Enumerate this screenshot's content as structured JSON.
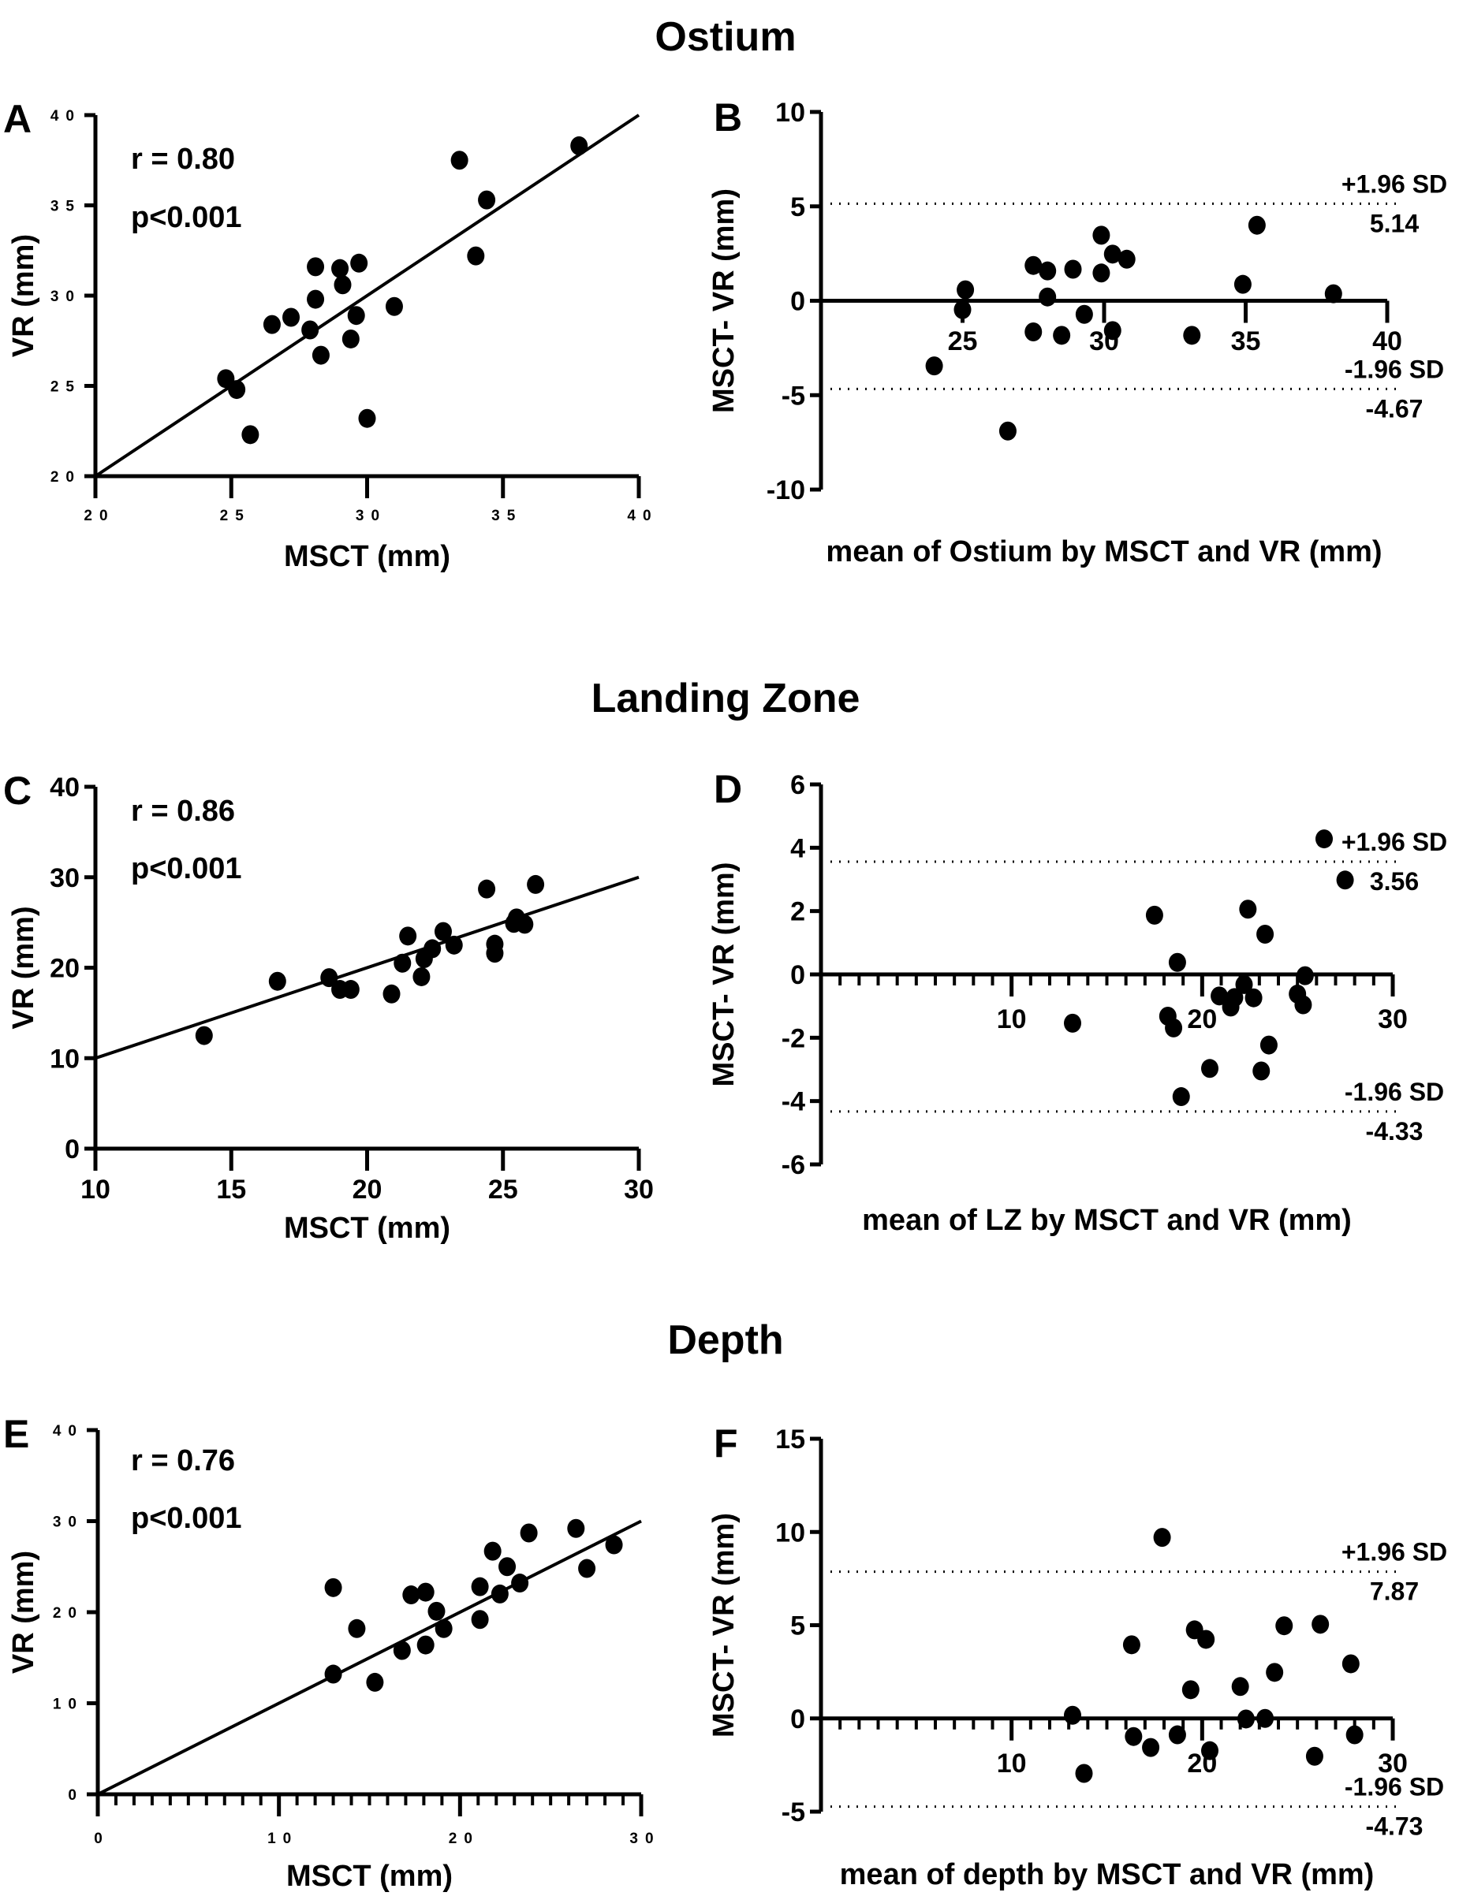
{
  "sections": {
    "ostium": "Ostium",
    "landing_zone": "Landing Zone",
    "depth": "Depth"
  },
  "chart_data": [
    {
      "id": "A",
      "letter": "A",
      "type": "scatter",
      "xlabel": "MSCT (mm)",
      "ylabel": "VR (mm)",
      "xlim": [
        20,
        40
      ],
      "ylim": [
        20,
        40
      ],
      "xticks": [
        20,
        25,
        30,
        35,
        40
      ],
      "yticks": [
        20,
        25,
        30,
        35,
        40
      ],
      "tick_style": "small",
      "stats": {
        "r": "r = 0.80",
        "p": "p<0.001"
      },
      "regression_line": [
        [
          20,
          20
        ],
        [
          40,
          40
        ]
      ],
      "points": [
        [
          24.8,
          25.4
        ],
        [
          25.2,
          24.8
        ],
        [
          25.7,
          22.3
        ],
        [
          26.5,
          28.4
        ],
        [
          27.2,
          28.8
        ],
        [
          27.9,
          28.1
        ],
        [
          28.1,
          31.6
        ],
        [
          28.1,
          29.8
        ],
        [
          28.3,
          26.7
        ],
        [
          29.0,
          31.5
        ],
        [
          29.1,
          30.6
        ],
        [
          29.4,
          27.6
        ],
        [
          29.6,
          28.9
        ],
        [
          29.7,
          31.8
        ],
        [
          30.0,
          23.2
        ],
        [
          31.0,
          29.4
        ],
        [
          33.4,
          37.5
        ],
        [
          34.0,
          32.2
        ],
        [
          34.4,
          35.3
        ],
        [
          37.8,
          38.3
        ]
      ]
    },
    {
      "id": "B",
      "letter": "B",
      "type": "scatter",
      "xlabel": "mean of Ostium by MSCT and VR (mm)",
      "ylabel": "MSCT- VR (mm)",
      "xlim": [
        20,
        40
      ],
      "ylim": [
        -10,
        10
      ],
      "xticks": [
        25,
        30,
        35,
        40
      ],
      "yticks": [
        -10,
        -5,
        0,
        5,
        10
      ],
      "tick_style": "big",
      "limits": {
        "upper_label": "+1.96 SD",
        "upper": 5.14,
        "upper_text": "5.14",
        "lower_label": "-1.96 SD",
        "lower": -4.67,
        "lower_text": "-4.67"
      },
      "points": [
        [
          24.0,
          -3.45
        ],
        [
          25.0,
          -0.47
        ],
        [
          25.1,
          0.58
        ],
        [
          26.6,
          -6.9
        ],
        [
          27.5,
          1.87
        ],
        [
          27.5,
          -1.65
        ],
        [
          28.0,
          1.58
        ],
        [
          28.0,
          0.2
        ],
        [
          28.5,
          -1.83
        ],
        [
          28.9,
          1.67
        ],
        [
          29.3,
          -0.72
        ],
        [
          29.9,
          3.47
        ],
        [
          29.9,
          1.47
        ],
        [
          30.3,
          -1.58
        ],
        [
          30.3,
          2.47
        ],
        [
          30.8,
          2.2
        ],
        [
          33.1,
          -1.83
        ],
        [
          34.9,
          0.87
        ],
        [
          35.4,
          4.0
        ],
        [
          38.1,
          0.37
        ]
      ]
    },
    {
      "id": "C",
      "letter": "C",
      "type": "scatter",
      "xlabel": "MSCT (mm)",
      "ylabel": "VR (mm)",
      "xlim": [
        10,
        30
      ],
      "ylim": [
        0,
        40
      ],
      "xticks": [
        10,
        15,
        20,
        25,
        30
      ],
      "yticks": [
        0,
        10,
        20,
        30,
        40
      ],
      "tick_style": "big",
      "stats": {
        "r": "r = 0.86",
        "p": "p<0.001"
      },
      "regression_line": [
        [
          10,
          10
        ],
        [
          30,
          30
        ]
      ],
      "points": [
        [
          14.0,
          12.5
        ],
        [
          16.7,
          18.5
        ],
        [
          18.6,
          18.9
        ],
        [
          19.0,
          17.6
        ],
        [
          19.4,
          17.6
        ],
        [
          20.9,
          17.1
        ],
        [
          21.3,
          20.5
        ],
        [
          21.5,
          23.5
        ],
        [
          22.0,
          19.0
        ],
        [
          22.1,
          21.0
        ],
        [
          22.4,
          22.1
        ],
        [
          22.8,
          24.0
        ],
        [
          23.2,
          22.5
        ],
        [
          24.4,
          28.7
        ],
        [
          24.7,
          22.6
        ],
        [
          24.7,
          21.6
        ],
        [
          25.4,
          24.9
        ],
        [
          25.5,
          25.5
        ],
        [
          25.8,
          24.8
        ],
        [
          26.2,
          29.2
        ]
      ]
    },
    {
      "id": "D",
      "letter": "D",
      "type": "scatter",
      "xlabel": "mean of LZ by MSCT and VR (mm)",
      "ylabel": "MSCT- VR (mm)",
      "xlim": [
        0,
        30
      ],
      "ylim": [
        -6,
        6
      ],
      "xticks": [
        10,
        20,
        30
      ],
      "yticks": [
        -6,
        -4,
        -2,
        0,
        2,
        4,
        6
      ],
      "tick_style": "big",
      "limits": {
        "upper_label": "+1.96 SD",
        "upper": 3.56,
        "upper_text": "3.56",
        "lower_label": "-1.96 SD",
        "lower": -4.33,
        "lower_text": "-4.33"
      },
      "points": [
        [
          13.2,
          -1.54
        ],
        [
          17.5,
          1.87
        ],
        [
          18.2,
          -1.32
        ],
        [
          18.5,
          -1.69
        ],
        [
          18.7,
          0.38
        ],
        [
          18.9,
          -3.86
        ],
        [
          20.4,
          -2.97
        ],
        [
          20.9,
          -0.68
        ],
        [
          21.5,
          -1.03
        ],
        [
          21.7,
          -0.73
        ],
        [
          22.2,
          -0.32
        ],
        [
          22.4,
          2.06
        ],
        [
          22.7,
          -0.74
        ],
        [
          23.1,
          -3.05
        ],
        [
          23.3,
          1.27
        ],
        [
          23.5,
          -2.23
        ],
        [
          25.0,
          -0.62
        ],
        [
          25.3,
          -0.96
        ],
        [
          25.4,
          -0.04
        ],
        [
          26.4,
          4.28
        ],
        [
          27.5,
          2.98
        ]
      ]
    },
    {
      "id": "E",
      "letter": "E",
      "type": "scatter",
      "xlabel": "MSCT (mm)",
      "ylabel": "VR (mm)",
      "xlim": [
        0,
        30
      ],
      "ylim": [
        0,
        40
      ],
      "xticks": [
        0,
        10,
        20,
        30
      ],
      "yticks": [
        0,
        10,
        20,
        30,
        40
      ],
      "tick_style": "small",
      "stats": {
        "r": "r = 0.76",
        "p": "p<0.001"
      },
      "regression_line": [
        [
          0,
          0
        ],
        [
          30,
          30
        ]
      ],
      "points": [
        [
          13.0,
          22.7
        ],
        [
          13.0,
          13.2
        ],
        [
          14.3,
          18.2
        ],
        [
          15.3,
          12.3
        ],
        [
          16.8,
          15.8
        ],
        [
          17.3,
          21.9
        ],
        [
          18.1,
          22.2
        ],
        [
          18.1,
          16.4
        ],
        [
          18.7,
          20.1
        ],
        [
          19.1,
          18.2
        ],
        [
          21.1,
          22.8
        ],
        [
          21.1,
          19.2
        ],
        [
          21.8,
          26.7
        ],
        [
          22.2,
          22.0
        ],
        [
          22.6,
          25.0
        ],
        [
          23.3,
          23.2
        ],
        [
          23.8,
          28.7
        ],
        [
          26.4,
          29.2
        ],
        [
          27.0,
          24.8
        ],
        [
          28.5,
          27.4
        ]
      ]
    },
    {
      "id": "F",
      "letter": "F",
      "type": "scatter",
      "xlabel": "mean of depth by MSCT and VR (mm)",
      "ylabel": "MSCT- VR (mm)",
      "xlim": [
        0,
        30
      ],
      "ylim": [
        -5,
        15
      ],
      "xticks": [
        10,
        20,
        30
      ],
      "yticks": [
        -5,
        0,
        5,
        10,
        15
      ],
      "tick_style": "big",
      "limits": {
        "upper_label": "+1.96 SD",
        "upper": 7.87,
        "upper_text": "7.87",
        "lower_label": "-1.96 SD",
        "lower": -4.73,
        "lower_text": "-4.73"
      },
      "points": [
        [
          13.2,
          0.17
        ],
        [
          13.8,
          -2.95
        ],
        [
          16.3,
          3.95
        ],
        [
          16.4,
          -0.97
        ],
        [
          17.3,
          -1.56
        ],
        [
          17.9,
          9.71
        ],
        [
          18.7,
          -0.88
        ],
        [
          19.4,
          1.54
        ],
        [
          19.6,
          4.75
        ],
        [
          20.2,
          4.24
        ],
        [
          20.4,
          -1.73
        ],
        [
          22.0,
          1.71
        ],
        [
          22.3,
          -0.03
        ],
        [
          23.3,
          0.0
        ],
        [
          23.8,
          2.47
        ],
        [
          24.3,
          4.97
        ],
        [
          25.9,
          -2.03
        ],
        [
          26.2,
          5.05
        ],
        [
          27.8,
          2.93
        ],
        [
          28.0,
          -0.88
        ]
      ]
    }
  ]
}
